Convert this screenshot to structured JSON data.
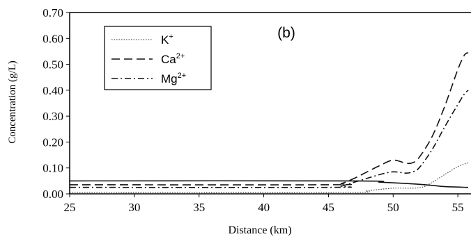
{
  "chart_data": {
    "type": "line",
    "title": "(b)",
    "xlabel": "Distance (km)",
    "ylabel": "Concentration (g/L)",
    "xlim": [
      25,
      56
    ],
    "ylim": [
      0,
      0.7
    ],
    "x_ticks": [
      25,
      30,
      35,
      40,
      45,
      50,
      55
    ],
    "x_tick_labels": [
      "25",
      "30",
      "35",
      "40",
      "45",
      "50",
      "55"
    ],
    "y_ticks": [
      0,
      0.1,
      0.2,
      0.3,
      0.4,
      0.5,
      0.6,
      0.7
    ],
    "y_tick_labels": [
      "0.00",
      "0.10",
      "0.20",
      "0.30",
      "0.40",
      "0.50",
      "0.60",
      "0.70"
    ],
    "grid": false,
    "legend_position": "top-left",
    "series": [
      {
        "name": "K",
        "ion_charge": "+",
        "style": "dotted",
        "color": "#555555",
        "x": [
          25,
          46,
          48,
          50,
          51.5,
          52.5,
          54,
          55,
          55.8
        ],
        "y": [
          0.005,
          0.005,
          0.012,
          0.022,
          0.022,
          0.03,
          0.075,
          0.105,
          0.12
        ]
      },
      {
        "name": "Ca",
        "ion_charge": "2+",
        "style": "dashed",
        "color": "#111111",
        "x": [
          25,
          45,
          46,
          47,
          48,
          49,
          50,
          51,
          51.5,
          52,
          53,
          54,
          55,
          55.5,
          55.8
        ],
        "y": [
          0.035,
          0.035,
          0.04,
          0.06,
          0.085,
          0.11,
          0.13,
          0.118,
          0.12,
          0.14,
          0.22,
          0.34,
          0.48,
          0.535,
          0.545
        ]
      },
      {
        "name": "Mg",
        "ion_charge": "2+",
        "style": "dashdot",
        "color": "#111111",
        "x": [
          25,
          45,
          46,
          47,
          48,
          49,
          50,
          51,
          51.5,
          52,
          53,
          54,
          55,
          55.5,
          55.8
        ],
        "y": [
          0.025,
          0.025,
          0.03,
          0.045,
          0.06,
          0.075,
          0.085,
          0.08,
          0.085,
          0.1,
          0.17,
          0.26,
          0.345,
          0.385,
          0.4
        ]
      },
      {
        "style": "solid",
        "color": "#111111",
        "x": [
          25,
          47,
          49,
          51,
          52.5,
          54,
          55.8
        ],
        "y": [
          0.05,
          0.05,
          0.045,
          0.04,
          0.035,
          0.028,
          0.025
        ]
      }
    ]
  }
}
